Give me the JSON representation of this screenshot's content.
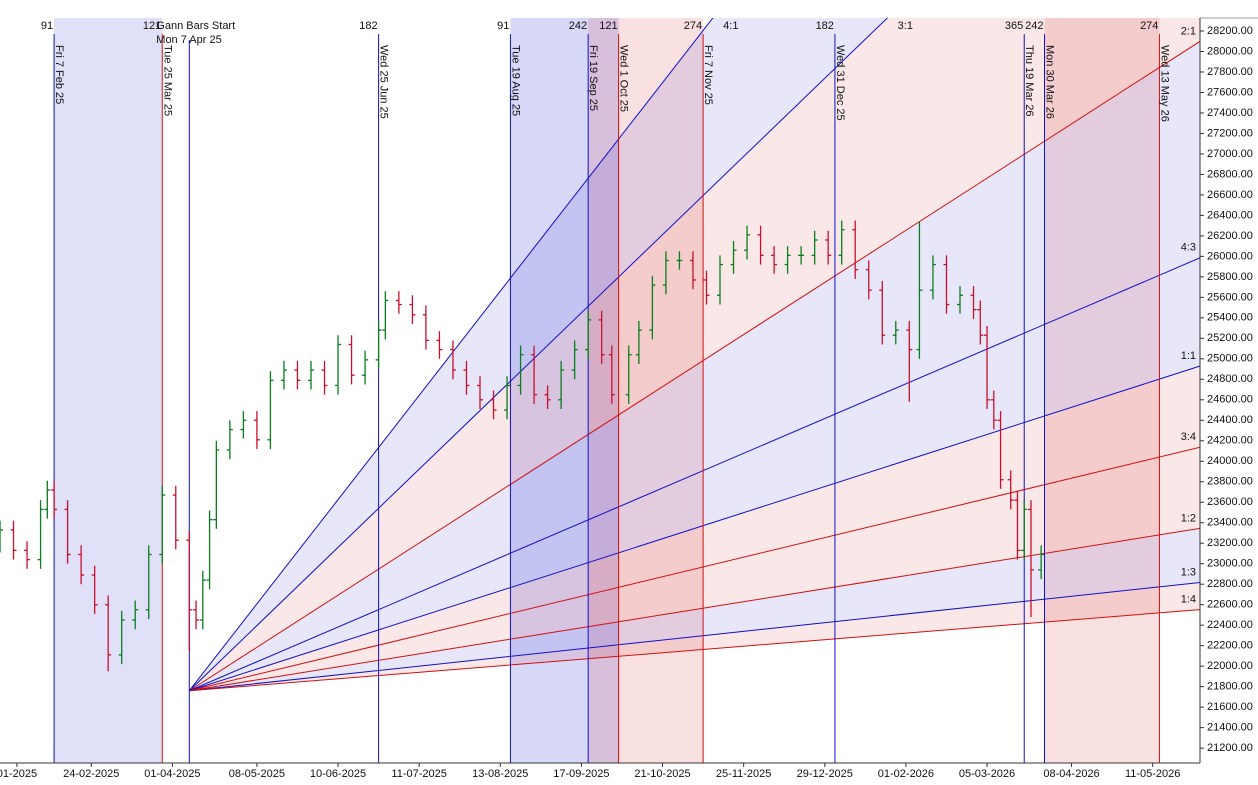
{
  "chart_data": {
    "type": "ohlc",
    "up_color": "#0a7d1e",
    "down_color": "#c8102e",
    "x": [
      0,
      4,
      8,
      12,
      14,
      16,
      20,
      24,
      28,
      32,
      36,
      40,
      44,
      48,
      52,
      56,
      58,
      60,
      62,
      64,
      68,
      72,
      76,
      80,
      84,
      88,
      92,
      96,
      100,
      104,
      108,
      112,
      114,
      118,
      122,
      126,
      130,
      134,
      138,
      142,
      146,
      150,
      154,
      158,
      162,
      166,
      170,
      174,
      178,
      181,
      186,
      189,
      193,
      197,
      201,
      205,
      209,
      213,
      217,
      221,
      225,
      229,
      233,
      237,
      241,
      245,
      249,
      253,
      257,
      261,
      265,
      269,
      272,
      276,
      280,
      284,
      288,
      290,
      292,
      294,
      296,
      299,
      301,
      303,
      305,
      308
    ],
    "open": [
      23200,
      23330,
      23130,
      23040,
      23530,
      23720,
      23530,
      23090,
      22890,
      22600,
      22110,
      22450,
      22550,
      23090,
      23670,
      23230,
      22550,
      22450,
      22840,
      23430,
      24110,
      24310,
      24400,
      24210,
      24790,
      24890,
      24790,
      24890,
      24740,
      25140,
      24840,
      24990,
      25280,
      25570,
      25530,
      25430,
      25180,
      25090,
      24890,
      24740,
      24600,
      24500,
      24740,
      25040,
      24650,
      24600,
      24890,
      25090,
      25380,
      25040,
      24650,
      25040,
      25280,
      25720,
      25960,
      25960,
      25770,
      25620,
      25920,
      26060,
      26210,
      26010,
      25920,
      26010,
      26010,
      26160,
      26010,
      26260,
      25870,
      25670,
      25230,
      25280,
      25090,
      25670,
      25920,
      25530,
      25620,
      25480,
      25230,
      24600,
      24400,
      23820,
      23620,
      23130,
      23530,
      22940
    ],
    "high": [
      23420,
      23420,
      23220,
      23620,
      23810,
      23810,
      23620,
      23180,
      22980,
      22690,
      22540,
      22640,
      23180,
      23760,
      23760,
      23320,
      22640,
      22930,
      23520,
      24200,
      24400,
      24490,
      24490,
      24880,
      24980,
      24980,
      24980,
      24980,
      25230,
      25230,
      25080,
      25370,
      25660,
      25660,
      25620,
      25520,
      25270,
      25180,
      24980,
      24830,
      24690,
      24830,
      25130,
      25130,
      24740,
      24980,
      25180,
      25470,
      25470,
      25130,
      25130,
      25370,
      25810,
      26050,
      26050,
      26050,
      25860,
      26010,
      26150,
      26300,
      26300,
      26100,
      26100,
      26100,
      26250,
      26250,
      26350,
      26350,
      25960,
      25760,
      25370,
      25370,
      26340,
      26010,
      26010,
      25710,
      25710,
      25570,
      25320,
      24690,
      24490,
      23910,
      23710,
      23620,
      23620,
      23180
    ],
    "low": [
      23110,
      23040,
      22950,
      22950,
      23440,
      23440,
      23000,
      22800,
      22510,
      21950,
      22020,
      22360,
      22460,
      23000,
      23140,
      22150,
      22360,
      22360,
      22750,
      23340,
      24020,
      24220,
      24120,
      24120,
      24700,
      24700,
      24700,
      24650,
      24650,
      24750,
      24750,
      24900,
      25190,
      25440,
      25340,
      25090,
      25000,
      24800,
      24650,
      24510,
      24410,
      24410,
      24650,
      24560,
      24510,
      24510,
      24800,
      25000,
      24950,
      24560,
      24560,
      24950,
      25190,
      25630,
      25870,
      25680,
      25530,
      25530,
      25830,
      25970,
      25920,
      25830,
      25830,
      25920,
      25920,
      25920,
      25920,
      25780,
      25580,
      25140,
      25140,
      24580,
      25000,
      25580,
      25440,
      25440,
      25390,
      25140,
      24510,
      24310,
      23730,
      23530,
      23040,
      23040,
      22480,
      22850
    ],
    "close": [
      23330,
      23130,
      23040,
      23530,
      23720,
      23530,
      23090,
      22890,
      22600,
      22110,
      22450,
      22550,
      23090,
      23670,
      23230,
      22550,
      22450,
      22840,
      23430,
      24110,
      24310,
      24400,
      24210,
      24790,
      24890,
      24790,
      24890,
      24740,
      25140,
      24840,
      24990,
      25280,
      25570,
      25530,
      25430,
      25180,
      25090,
      24890,
      24740,
      24600,
      24500,
      24740,
      25040,
      24650,
      24600,
      24890,
      25090,
      25380,
      25040,
      24650,
      25040,
      25280,
      25720,
      25960,
      25960,
      25770,
      25620,
      25920,
      26060,
      26210,
      26010,
      25920,
      26010,
      26010,
      26160,
      26010,
      26260,
      25870,
      25670,
      25230,
      25280,
      25090,
      25670,
      25920,
      25530,
      25620,
      25480,
      25230,
      24600,
      24400,
      23820,
      23620,
      23130,
      23530,
      22940,
      23090
    ],
    "xlim": [
      0,
      355
    ],
    "ylim": [
      21000,
      28400
    ],
    "grid": false,
    "xticks": [
      {
        "value": 5,
        "label": "01-2025"
      },
      {
        "value": 27,
        "label": "24-02-2025"
      },
      {
        "value": 51,
        "label": "01-04-2025"
      },
      {
        "value": 76,
        "label": "08-05-2025"
      },
      {
        "value": 100,
        "label": "10-06-2025"
      },
      {
        "value": 124,
        "label": "11-07-2025"
      },
      {
        "value": 148,
        "label": "13-08-2025"
      },
      {
        "value": 172,
        "label": "17-09-2025"
      },
      {
        "value": 196,
        "label": "21-10-2025"
      },
      {
        "value": 220,
        "label": "25-11-2025"
      },
      {
        "value": 244,
        "label": "29-12-2025"
      },
      {
        "value": 268,
        "label": "01-02-2026"
      },
      {
        "value": 292,
        "label": "05-03-2026"
      },
      {
        "value": 317,
        "label": "08-04-2026"
      },
      {
        "value": 341,
        "label": "11-05-2026"
      }
    ],
    "yticks": [
      {
        "value": 21200,
        "label": "21200.00"
      },
      {
        "value": 21400,
        "label": "21400.00"
      },
      {
        "value": 21600,
        "label": "21600.00"
      },
      {
        "value": 21800,
        "label": "21800.00"
      },
      {
        "value": 22000,
        "label": "22000.00"
      },
      {
        "value": 22200,
        "label": "22200.00"
      },
      {
        "value": 22400,
        "label": "22400.00"
      },
      {
        "value": 22600,
        "label": "22600.00"
      },
      {
        "value": 22800,
        "label": "22800.00"
      },
      {
        "value": 23000,
        "label": "23000.00"
      },
      {
        "value": 23200,
        "label": "23200.00"
      },
      {
        "value": 23400,
        "label": "23400.00"
      },
      {
        "value": 23600,
        "label": "23600.00"
      },
      {
        "value": 23800,
        "label": "23800.00"
      },
      {
        "value": 24000,
        "label": "24000.00"
      },
      {
        "value": 24200,
        "label": "24200.00"
      },
      {
        "value": 24400,
        "label": "24400.00"
      },
      {
        "value": 24600,
        "label": "24600.00"
      },
      {
        "value": 24800,
        "label": "24800.00"
      },
      {
        "value": 25000,
        "label": "25000.00"
      },
      {
        "value": 25200,
        "label": "25200.00"
      },
      {
        "value": 25400,
        "label": "25400.00"
      },
      {
        "value": 25600,
        "label": "25600.00"
      },
      {
        "value": 25800,
        "label": "25800.00"
      },
      {
        "value": 26000,
        "label": "26000.00"
      },
      {
        "value": 26200,
        "label": "26200.00"
      },
      {
        "value": 26400,
        "label": "26400.00"
      },
      {
        "value": 26600,
        "label": "26600.00"
      },
      {
        "value": 26800,
        "label": "26800.00"
      },
      {
        "value": 27000,
        "label": "27000.00"
      },
      {
        "value": 27200,
        "label": "27200.00"
      },
      {
        "value": 27400,
        "label": "27400.00"
      },
      {
        "value": 27600,
        "label": "27600.00"
      },
      {
        "value": 27800,
        "label": "27800.00"
      },
      {
        "value": 28000,
        "label": "28000.00"
      },
      {
        "value": 28200,
        "label": "28200.00"
      }
    ],
    "fan": {
      "origin_x": 56,
      "origin_y": 21760,
      "price_per_bar": 10.6,
      "lines": [
        {
          "label": "4:1",
          "ratio": [
            4,
            1
          ],
          "color": "#1010c8"
        },
        {
          "label": "3:1",
          "ratio": [
            3,
            1
          ],
          "color": "#1010c8"
        },
        {
          "label": "2:1",
          "ratio": [
            2,
            1
          ],
          "color": "#d01010"
        },
        {
          "label": "4:3",
          "ratio": [
            4,
            3
          ],
          "color": "#1010c8"
        },
        {
          "label": "1:1",
          "ratio": [
            1,
            1
          ],
          "color": "#1010c8"
        },
        {
          "label": "3:4",
          "ratio": [
            3,
            4
          ],
          "color": "#d01010"
        },
        {
          "label": "1:2",
          "ratio": [
            1,
            2
          ],
          "color": "#d01010"
        },
        {
          "label": "1:3",
          "ratio": [
            1,
            3
          ],
          "color": "#1010c8"
        },
        {
          "label": "1:4",
          "ratio": [
            1,
            4
          ],
          "color": "#d01010"
        }
      ]
    },
    "start": {
      "x": 56,
      "title": "Gann Bars Start",
      "date": "Mon 7 Apr 25",
      "color": "#1010c8"
    },
    "time_lines": [
      {
        "x": 16,
        "date": "Fri 7 Feb 25",
        "count": 91,
        "color": "#1010c8"
      },
      {
        "x": 48,
        "date": "Tue 25 Mar 25",
        "count": 121,
        "color": "#d01010"
      },
      {
        "x": 112,
        "date": "Wed 25 Jun 25",
        "count": 182,
        "color": "#1010c8"
      },
      {
        "x": 151,
        "date": "Tue 19 Aug 25",
        "count": 91,
        "color": "#1010c8"
      },
      {
        "x": 174,
        "date": "Fri 19 Sep 25",
        "count": 242,
        "color": "#1010c8"
      },
      {
        "x": 183,
        "date": "Wed 1 Oct 25",
        "count": 121,
        "color": "#d01010"
      },
      {
        "x": 208,
        "date": "Fri 7 Nov 25",
        "count": 274,
        "color": "#d01010"
      },
      {
        "x": 247,
        "date": "Wed 31 Dec 25",
        "count": 182,
        "color": "#1010c8"
      },
      {
        "x": 303,
        "date": "Thu 19 Mar 26",
        "count": 365,
        "color": "#1010c8"
      },
      {
        "x": 309,
        "date": "Mon 30 Mar 26",
        "count": 242,
        "color": "#1010c8"
      },
      {
        "x": 343,
        "date": "Wed 13 May 26",
        "count": 274,
        "color": "#d01010"
      }
    ]
  }
}
